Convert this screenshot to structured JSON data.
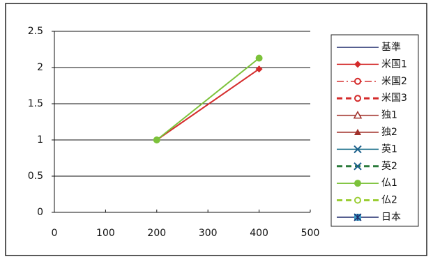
{
  "chart_data": {
    "type": "line",
    "xlim": [
      0,
      500
    ],
    "xticks": [
      0,
      100,
      200,
      300,
      400,
      500
    ],
    "ylim": [
      0,
      2.5
    ],
    "yticks": [
      0,
      0.5,
      1,
      1.5,
      2,
      2.5
    ],
    "grid": true,
    "legend": "right",
    "series": [
      {
        "name": "基準",
        "color": "#1f2a6b",
        "marker": "none",
        "dash": "solid",
        "x": [],
        "values": []
      },
      {
        "name": "米国1",
        "color": "#d42a2a",
        "marker": "diamond",
        "dash": "solid",
        "x": [
          200,
          400
        ],
        "values": [
          1,
          1.98
        ]
      },
      {
        "name": "米国2",
        "color": "#d42a2a",
        "marker": "open-circle",
        "dash": "dashdot",
        "x": [],
        "values": []
      },
      {
        "name": "米国3",
        "color": "#d42a2a",
        "marker": "open-circle",
        "dash": "dashed",
        "x": [],
        "values": []
      },
      {
        "name": "独1",
        "color": "#a0302a",
        "marker": "open-triangle",
        "dash": "solid",
        "x": [],
        "values": []
      },
      {
        "name": "独2",
        "color": "#a0302a",
        "marker": "triangle",
        "dash": "solid",
        "x": [],
        "values": []
      },
      {
        "name": "英1",
        "color": "#1a6f8a",
        "marker": "x",
        "dash": "solid",
        "x": [],
        "values": []
      },
      {
        "name": "英2",
        "color": "#2a7a3a",
        "marker": "x",
        "dash": "dashed",
        "x": [],
        "values": []
      },
      {
        "name": "仏1",
        "color": "#7cc23a",
        "marker": "circle",
        "dash": "solid",
        "x": [
          200,
          400
        ],
        "values": [
          1,
          2.13
        ]
      },
      {
        "name": "仏2",
        "color": "#9acd32",
        "marker": "open-circle",
        "dash": "dashed",
        "x": [],
        "values": []
      },
      {
        "name": "日本",
        "color": "#1f2a6b",
        "marker": "star-square",
        "dash": "solid",
        "x": [],
        "values": []
      }
    ]
  }
}
